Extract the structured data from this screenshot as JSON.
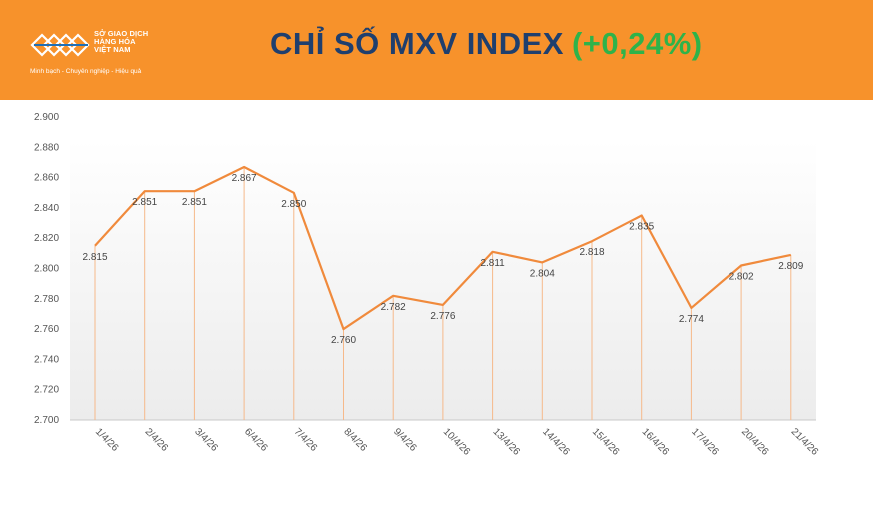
{
  "header": {
    "title": "CHỈ SỐ MXV INDEX",
    "change": "(+0,24%)",
    "logo": {
      "line1": "SỞ GIAO DỊCH",
      "line2": "HÀNG HÓA",
      "line3": "VIỆT NAM",
      "tagline": "Minh bạch - Chuyên nghiệp - Hiệu quả"
    },
    "colors": {
      "banner": "#f7922b",
      "title": "#1f3f6e",
      "change": "#2fb34a"
    }
  },
  "chart_data": {
    "type": "line",
    "categories": [
      "1/4/26",
      "2/4/26",
      "3/4/26",
      "6/4/26",
      "7/4/26",
      "8/4/26",
      "9/4/26",
      "10/4/26",
      "13/4/26",
      "14/4/26",
      "15/4/26",
      "16/4/26",
      "17/4/26",
      "20/4/26",
      "21/4/26"
    ],
    "series": [
      {
        "values": [
          2815,
          2851,
          2851,
          2867,
          2850,
          2760,
          2782,
          2776,
          2811,
          2804,
          2818,
          2835,
          2774,
          2802,
          2809
        ]
      }
    ],
    "data_labels": [
      "2.815",
      "2.851",
      "2.851",
      "2.867",
      "2.850",
      "2.760",
      "2.782",
      "2.776",
      "2.811",
      "2.804",
      "2.818",
      "2.835",
      "2.774",
      "2.802",
      "2.809"
    ],
    "y_ticks": [
      "2.900",
      "2.880",
      "2.860",
      "2.840",
      "2.820",
      "2.800",
      "2.780",
      "2.760",
      "2.740",
      "2.720",
      "2.700"
    ],
    "ylim": [
      2700,
      2900
    ],
    "grid": false,
    "line_color": "#f08a3c",
    "drop_line_color": "#f6b98a"
  }
}
